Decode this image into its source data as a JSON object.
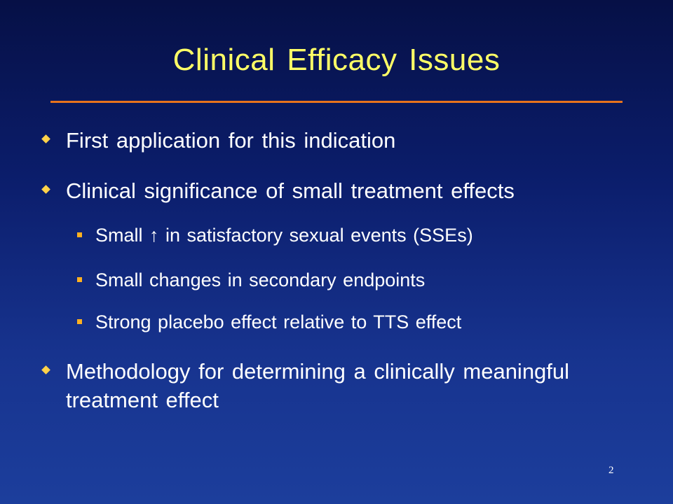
{
  "slide": {
    "title": "Clinical Efficacy Issues",
    "bullets": [
      {
        "text": "First application for this indication"
      },
      {
        "text": "Clinical significance of small treatment effects"
      },
      {
        "text": "Small ↑ in satisfactory sexual events (SSEs)"
      },
      {
        "text": "Small changes in secondary endpoints"
      },
      {
        "text": "Strong placebo effect relative to TTS effect"
      },
      {
        "text": "Methodology for determining a clinically meaningful treatment effect"
      }
    ],
    "page_number": "2",
    "colors": {
      "background_top": "#061046",
      "background_bottom": "#1c3e9c",
      "title": "#ffff66",
      "rule": "#e8731c",
      "text": "#ffffff",
      "bullet": "#ffd24a"
    }
  }
}
